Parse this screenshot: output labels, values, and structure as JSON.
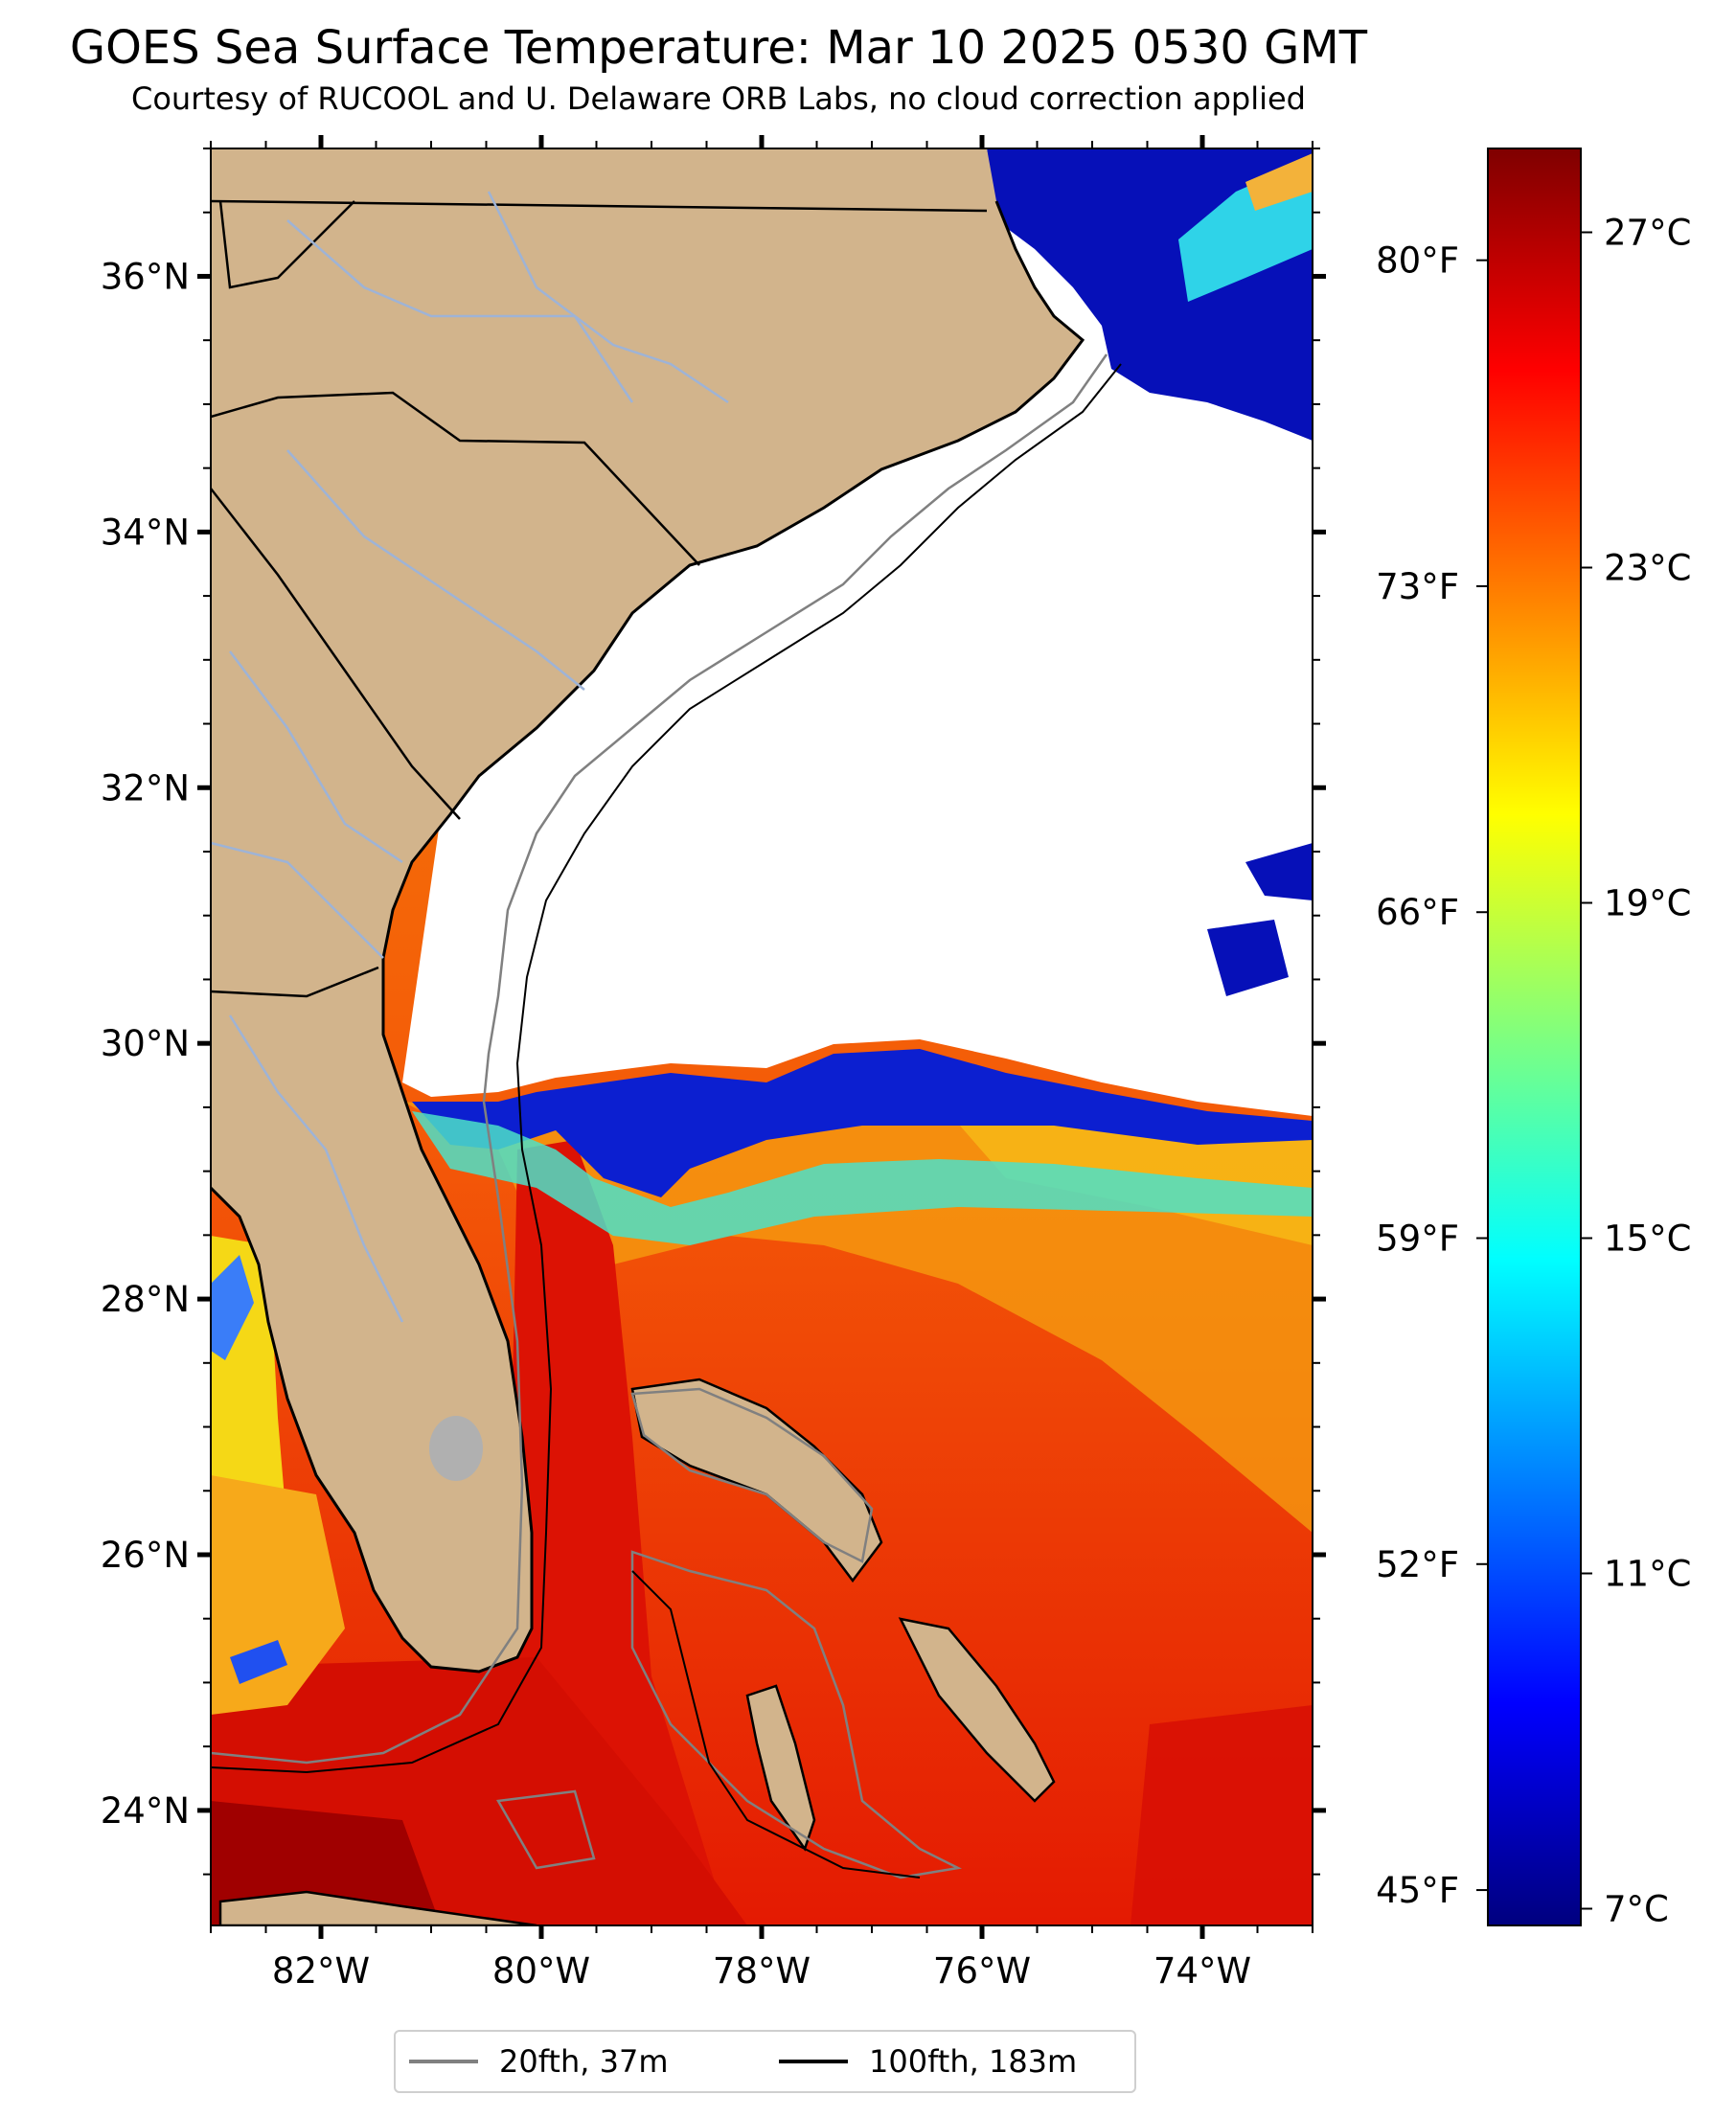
{
  "title": "GOES Sea Surface Temperature: Mar 10 2025 0530 GMT",
  "subtitle": "Courtesy of RUCOOL and U. Delaware ORB Labs, no cloud correction applied",
  "map": {
    "lon_range": [
      -83,
      -73
    ],
    "lat_range": [
      23.1,
      37.0
    ],
    "lon_ticks": [
      {
        "value": -82,
        "label": "82°W"
      },
      {
        "value": -80,
        "label": "80°W"
      },
      {
        "value": -78,
        "label": "78°W"
      },
      {
        "value": -76,
        "label": "76°W"
      },
      {
        "value": -74,
        "label": "74°W"
      }
    ],
    "lat_ticks": [
      {
        "value": 36,
        "label": "36°N"
      },
      {
        "value": 34,
        "label": "34°N"
      },
      {
        "value": 32,
        "label": "32°N"
      },
      {
        "value": 30,
        "label": "30°N"
      },
      {
        "value": 28,
        "label": "28°N"
      },
      {
        "value": 26,
        "label": "26°N"
      },
      {
        "value": 24,
        "label": "24°N"
      }
    ],
    "colors": {
      "land": "#d2b48c",
      "cloud": "#ffffff",
      "rivers": "#9eb3d6",
      "boundaries": "#000000",
      "lake": "#b0b0b0"
    }
  },
  "fahrenheit_axis": {
    "ticks": [
      {
        "value": 80,
        "label": "80°F"
      },
      {
        "value": 73,
        "label": "73°F"
      },
      {
        "value": 66,
        "label": "66°F"
      },
      {
        "value": 59,
        "label": "59°F"
      },
      {
        "value": 52,
        "label": "52°F"
      },
      {
        "value": 45,
        "label": "45°F"
      }
    ]
  },
  "colorbar": {
    "min": 6.8,
    "max": 28.0,
    "ticks": [
      {
        "value": 27,
        "label": "27°C"
      },
      {
        "value": 23,
        "label": "23°C"
      },
      {
        "value": 19,
        "label": "19°C"
      },
      {
        "value": 15,
        "label": "15°C"
      },
      {
        "value": 11,
        "label": "11°C"
      },
      {
        "value": 7,
        "label": "7°C"
      }
    ],
    "stops": [
      "#00007f",
      "#0000ff",
      "#007fff",
      "#00ffff",
      "#7fff7f",
      "#ffff00",
      "#ff7f00",
      "#ff0000",
      "#7f0000"
    ]
  },
  "legend": {
    "items": [
      {
        "label": "20fth, 37m",
        "color": "#808080"
      },
      {
        "label": "100fth, 183m",
        "color": "#000000"
      }
    ]
  }
}
